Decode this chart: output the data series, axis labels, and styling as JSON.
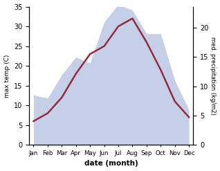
{
  "months": [
    "Jan",
    "Feb",
    "Mar",
    "Apr",
    "May",
    "Jun",
    "Jul",
    "Aug",
    "Sep",
    "Oct",
    "Nov",
    "Dec"
  ],
  "temp": [
    6,
    8,
    12,
    18,
    23,
    25,
    30,
    32,
    26,
    19,
    11,
    7
  ],
  "precip": [
    8.5,
    8,
    12,
    15,
    14,
    21,
    24,
    23,
    19,
    19,
    11,
    6
  ],
  "temp_color": "#922B3E",
  "precip_fill_color": "#c5cfe8",
  "left_ylim": [
    0,
    35
  ],
  "left_yticks": [
    0,
    5,
    10,
    15,
    20,
    25,
    30,
    35
  ],
  "right_ylim": [
    0,
    23.625
  ],
  "right_yticks": [
    0,
    5,
    10,
    15,
    20
  ],
  "xlabel": "date (month)",
  "ylabel_left": "max temp (C)",
  "ylabel_right": "med. precipitation (kg/m2)",
  "background_color": "#ffffff"
}
